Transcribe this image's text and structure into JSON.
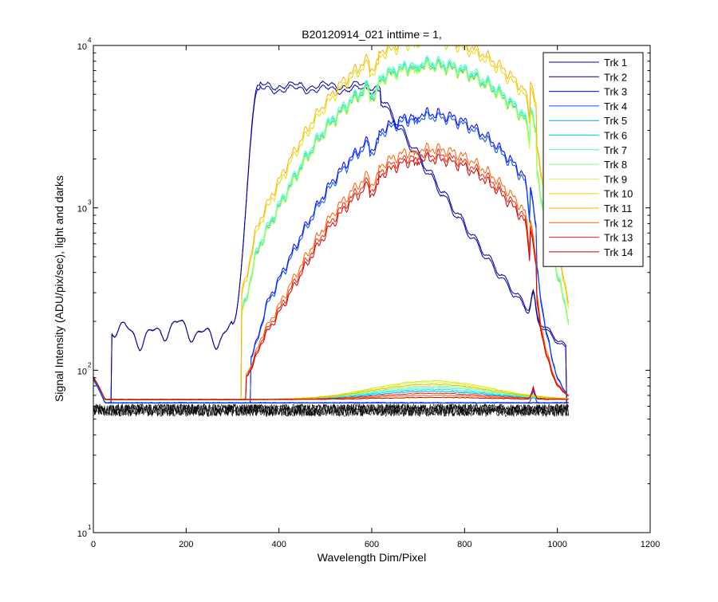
{
  "chart_data": {
    "type": "line",
    "title": "B20120914_021 inttime = 1,",
    "xlabel": "Wavelength Dim/Pixel",
    "ylabel": "Signal Intensity (ADU/pix/sec), light and darks",
    "xlim": [
      0,
      1200
    ],
    "ylim": [
      10,
      10000
    ],
    "yscale": "log",
    "grid": false,
    "legend_position": "top-right",
    "x_ticks": [
      0,
      200,
      400,
      600,
      800,
      1000,
      1200
    ],
    "x_tick_labels": [
      "0",
      "200",
      "400",
      "600",
      "800",
      "1000",
      "1200"
    ],
    "y_ticks": [
      {
        "value": 10,
        "base": "10",
        "exp": "1"
      },
      {
        "value": 100,
        "base": "10",
        "exp": "2"
      },
      {
        "value": 1000,
        "base": "10",
        "exp": "3"
      },
      {
        "value": 10000,
        "base": "10",
        "exp": "4"
      }
    ],
    "series": [
      {
        "name": "Trk 1",
        "color": "#0000b0",
        "shape": "blue",
        "level": 5300,
        "edge": 0.06,
        "dark": 63
      },
      {
        "name": "Trk 2",
        "color": "#00009a",
        "shape": "blue",
        "level": 5600,
        "edge": 0.06,
        "dark": 63
      },
      {
        "name": "Trk 3",
        "color": "#0000ff",
        "shape": "b3",
        "peak": 3000,
        "dark": 63
      },
      {
        "name": "Trk 4",
        "color": "#0050ff",
        "shape": "b3",
        "peak": 2850,
        "dark": 63
      },
      {
        "name": "Trk 5",
        "color": "#00a8ff",
        "shape": "vis",
        "peak": 5900,
        "dark": 66,
        "bump": 74
      },
      {
        "name": "Trk 6",
        "color": "#00e0e0",
        "shape": "vis",
        "peak": 6100,
        "dark": 66,
        "bump": 76
      },
      {
        "name": "Trk 7",
        "color": "#40ffc0",
        "shape": "vis",
        "peak": 6300,
        "dark": 66,
        "bump": 78
      },
      {
        "name": "Trk 8",
        "color": "#80ff80",
        "shape": "vis",
        "peak": 6000,
        "dark": 66,
        "bump": 80
      },
      {
        "name": "Trk 9",
        "color": "#c0ff40",
        "shape": "vis",
        "peak": 5800,
        "dark": 66,
        "bump": 84
      },
      {
        "name": "Trk 10",
        "color": "#e0e000",
        "shape": "vis",
        "peak": 8400,
        "dark": 66,
        "bump": 86
      },
      {
        "name": "Trk 11",
        "color": "#ffb000",
        "shape": "vis",
        "peak": 9000,
        "dark": 66,
        "bump": 82
      },
      {
        "name": "Trk 12",
        "color": "#ff6000",
        "shape": "red",
        "peak": 1800,
        "dark": 66,
        "bump": 70
      },
      {
        "name": "Trk 13",
        "color": "#ff2000",
        "shape": "red",
        "peak": 1650,
        "dark": 66,
        "bump": 72
      },
      {
        "name": "Trk 14",
        "color": "#d00000",
        "shape": "red",
        "peak": 1550,
        "dark": 66,
        "bump": 68
      }
    ],
    "dark_band": {
      "color": "#000000",
      "low": 52,
      "high": 62,
      "x_end": 1024
    }
  }
}
